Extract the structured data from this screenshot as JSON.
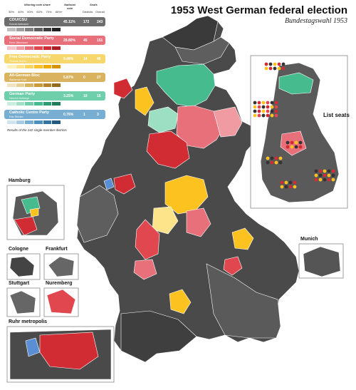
{
  "title": "1953 West German federal election",
  "subtitle": "Bundestagswahl 1953",
  "legend": {
    "header_winning": "Winning vote share",
    "header_national": "National vote",
    "header_seats": "Seats",
    "seats_sub1": "Districts",
    "seats_sub2": "Overall",
    "ticks": [
      "30%",
      "40%",
      "50%",
      "60%",
      "70%",
      "80%+"
    ],
    "note": "Results of the 242 single-member districts",
    "parties": [
      {
        "name": "CDU/CSU",
        "leader": "Konrad Adenauer",
        "vote_pct": "45.11%",
        "districts": "172",
        "overall": "243",
        "color": "#6d6d6d",
        "scale": [
          "#bdbdbd",
          "#9e9e9e",
          "#808080",
          "#5e5e5e",
          "#3f3f3f",
          "#222222"
        ]
      },
      {
        "name": "Social Democratic Party",
        "leader": "Erich Ollenhauer",
        "vote_pct": "28.80%",
        "districts": "45",
        "overall": "151",
        "color": "#e8707a",
        "scale": [
          "#f7c1c5",
          "#f09aa1",
          "#e8707a",
          "#e0474f",
          "#d12b33",
          "#b01d25"
        ]
      },
      {
        "name": "Free Democratic Party",
        "leader": "Thomas Dehler",
        "vote_pct": "9.48%",
        "districts": "14",
        "overall": "48",
        "color": "#f5d76b",
        "scale": [
          "#fff1b8",
          "#fde48a",
          "#fcd35a",
          "#f9c02c",
          "#f1ab00",
          "#d89300"
        ]
      },
      {
        "name": "All-German Bloc",
        "leader": "Waldemar Kraft",
        "vote_pct": "5.87%",
        "districts": "0",
        "overall": "27",
        "color": "#d9b360",
        "scale": [
          "#f3e3bd",
          "#e8cf94",
          "#d9b360",
          "#c99a3c",
          "#b3822a",
          "#946a1e"
        ]
      },
      {
        "name": "German Party",
        "leader": "Heinrich Hellwege",
        "vote_pct": "3.25%",
        "districts": "10",
        "overall": "15",
        "color": "#6fcfab",
        "scale": [
          "#c8eedd",
          "#a0e0c5",
          "#6fcfab",
          "#45bb8e",
          "#2a9e72",
          "#1e7f5a"
        ]
      },
      {
        "name": "Catholic Centre Party",
        "leader": "Fritz Stricker",
        "vote_pct": "0.76%",
        "districts": "1",
        "overall": "3",
        "color": "#78aed1",
        "scale": [
          "#cfe3f1",
          "#a6cbe4",
          "#78aed1",
          "#4f90be",
          "#3474a3",
          "#245a82"
        ]
      }
    ]
  },
  "insets": {
    "hamburg": "Hamburg",
    "cologne": "Cologne",
    "frankfurt": "Frankfurt",
    "stuttgart": "Stuttgart",
    "nuremberg": "Nuremberg",
    "munich": "Munich",
    "ruhr": "Ruhr metropolis",
    "list_seats": "List seats"
  },
  "colors": {
    "cdu_dark": "#333333",
    "cdu_mid": "#555555",
    "cdu_light": "#777777",
    "spd": "#e8707a",
    "spd_dark": "#d12b33",
    "fdp": "#fcc21f",
    "dp": "#45bb8e",
    "dp_light": "#9ddfc2",
    "zentrum": "#5a8fd6",
    "border": "#ffffff"
  }
}
